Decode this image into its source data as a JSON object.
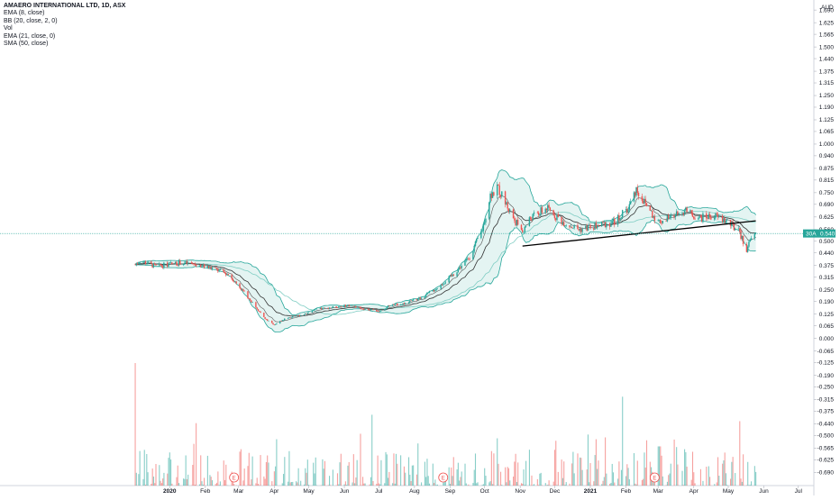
{
  "legend": {
    "symbol_line": "AMAERO INTERNATIONAL LTD, 1D, ASX",
    "indicators": [
      "EMA (8, close)",
      "BB (20, close, 2, 0)",
      "Vol",
      "EMA (21, close, 0)",
      "SMA (50, close)"
    ]
  },
  "colors": {
    "up": "#26a69a",
    "down": "#ef5350",
    "bb_band": "#26a69a",
    "bb_fill": "#b2dfdb",
    "ema8": "#555555",
    "ema21": "#333333",
    "sma50": "#7fcdc3",
    "trendline": "#000000",
    "axis_text": "#131722",
    "price_badge": "#26a69a"
  },
  "chart_data": {
    "type": "candlestick",
    "price_axis": {
      "currency": "AUD",
      "ticks": [
        "1.690",
        "1.625",
        "1.565",
        "1.500",
        "1.440",
        "1.375",
        "1.315",
        "1.250",
        "1.190",
        "1.125",
        "1.065",
        "1.000",
        "0.940",
        "0.875",
        "0.815",
        "0.750",
        "0.690",
        "0.625",
        "0.560",
        "0.500",
        "0.440",
        "0.375",
        "0.315",
        "0.250",
        "0.190",
        "0.125",
        "0.065",
        "0.000",
        "-0.065",
        "-0.125",
        "-0.190",
        "-0.250",
        "-0.315",
        "-0.375",
        "-0.440",
        "-0.500",
        "-0.565",
        "-0.625",
        "-0.690"
      ],
      "range": [
        -0.73,
        1.7
      ]
    },
    "time_axis": {
      "ticks": [
        "2020",
        "Feb",
        "Mar",
        "Apr",
        "May",
        "Jun",
        "Jul",
        "Aug",
        "Sep",
        "Oct",
        "Nov",
        "Dec",
        "2021",
        "Feb",
        "Mar",
        "Apr",
        "May",
        "Jun",
        "Jul"
      ],
      "start": "2019-12-02",
      "end": "2021-07-20"
    },
    "last_price": {
      "label": "30A",
      "value": "0.540"
    },
    "price_path": [
      [
        "2019-12-02",
        0.38
      ],
      [
        "2019-12-06",
        0.4
      ],
      [
        "2019-12-20",
        0.37
      ],
      [
        "2020-01-10",
        0.39
      ],
      [
        "2020-01-24",
        0.38
      ],
      [
        "2020-02-07",
        0.36
      ],
      [
        "2020-02-21",
        0.33
      ],
      [
        "2020-03-04",
        0.25
      ],
      [
        "2020-03-16",
        0.16
      ],
      [
        "2020-03-24",
        0.1
      ],
      [
        "2020-04-01",
        0.07
      ],
      [
        "2020-04-10",
        0.1
      ],
      [
        "2020-04-24",
        0.12
      ],
      [
        "2020-05-08",
        0.15
      ],
      [
        "2020-05-22",
        0.16
      ],
      [
        "2020-06-05",
        0.17
      ],
      [
        "2020-06-19",
        0.15
      ],
      [
        "2020-07-03",
        0.14
      ],
      [
        "2020-07-10",
        0.17
      ],
      [
        "2020-07-24",
        0.18
      ],
      [
        "2020-08-07",
        0.21
      ],
      [
        "2020-08-21",
        0.26
      ],
      [
        "2020-09-04",
        0.33
      ],
      [
        "2020-09-18",
        0.42
      ],
      [
        "2020-09-29",
        0.56
      ],
      [
        "2020-10-06",
        0.74
      ],
      [
        "2020-10-13",
        0.77
      ],
      [
        "2020-10-20",
        0.69
      ],
      [
        "2020-10-27",
        0.61
      ],
      [
        "2020-11-03",
        0.55
      ],
      [
        "2020-11-10",
        0.62
      ],
      [
        "2020-11-24",
        0.67
      ],
      [
        "2020-12-08",
        0.6
      ],
      [
        "2020-12-22",
        0.56
      ],
      [
        "2021-01-08",
        0.58
      ],
      [
        "2021-01-22",
        0.6
      ],
      [
        "2021-02-03",
        0.67
      ],
      [
        "2021-02-10",
        0.77
      ],
      [
        "2021-02-17",
        0.7
      ],
      [
        "2021-03-01",
        0.6
      ],
      [
        "2021-03-12",
        0.62
      ],
      [
        "2021-03-22",
        0.66
      ],
      [
        "2021-04-06",
        0.62
      ],
      [
        "2021-04-19",
        0.63
      ],
      [
        "2021-04-30",
        0.6
      ],
      [
        "2021-05-10",
        0.55
      ],
      [
        "2021-05-17",
        0.46
      ],
      [
        "2021-05-21",
        0.51
      ],
      [
        "2021-05-25",
        0.54
      ]
    ],
    "trendline": {
      "from": [
        "2020-11-03",
        0.475
      ],
      "to": [
        "2021-05-25",
        0.605
      ]
    },
    "volume_peak_note": "volume histogram at bottom, spike on first bar",
    "grid": false,
    "event_markers": [
      {
        "label": "E",
        "date": "2020-02-26"
      },
      {
        "label": "E",
        "date": "2020-08-26"
      },
      {
        "label": "E",
        "date": "2021-02-26"
      }
    ]
  }
}
